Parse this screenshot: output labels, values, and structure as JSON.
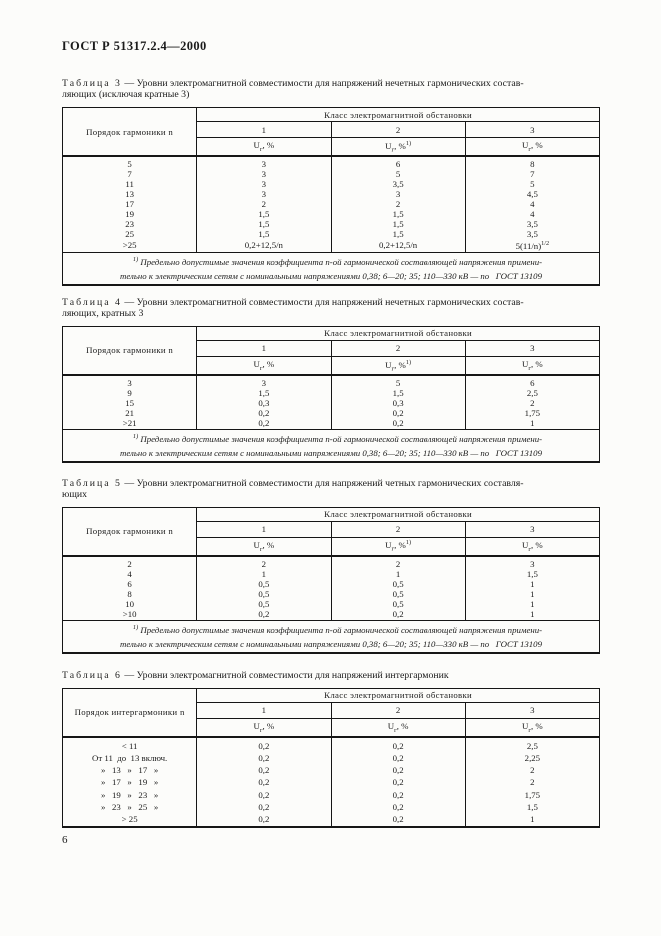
{
  "page": {
    "doc_code": "ГОСТ Р 51317.2.4—2000",
    "page_number": "6"
  },
  "shared": {
    "class_header": "Класс электромагнитной обстановки",
    "class_numbers": [
      "1",
      "2",
      "3"
    ],
    "footnote_marker": "1)",
    "footnote_lines": [
      "Предельно допустимые значения коэффициента n-ой гармонической составляющей напряжения примени-",
      "тельно к электрическим сетям с номинальными напряжениями 0,38; 6—20; 35; 110—330 кВ — по   ГОСТ 13109"
    ]
  },
  "tables": [
    {
      "label": "Таблица 3",
      "title_lines": [
        "— Уровни электромагнитной совместимости для напряжений нечетных гармонических состав-",
        "ляющих (исключая кратные 3)"
      ],
      "row_header": "Порядок гармоники n",
      "units": [
        {
          "t": "Uг, %"
        },
        {
          "t": "Uг, %",
          "sup": "1)"
        },
        {
          "t": "Uг, %"
        }
      ],
      "rows": [
        [
          "5",
          "3",
          "6",
          "8"
        ],
        [
          "7",
          "3",
          "5",
          "7"
        ],
        [
          "11",
          "3",
          "3,5",
          "5"
        ],
        [
          "13",
          "3",
          "3",
          "4,5"
        ],
        [
          "17",
          "2",
          "2",
          "4"
        ],
        [
          "19",
          "1,5",
          "1,5",
          "4"
        ],
        [
          "23",
          "1,5",
          "1,5",
          "3,5"
        ],
        [
          "25",
          "1,5",
          "1,5",
          "3,5"
        ],
        [
          ">25",
          "0,2+12,5/n",
          "0,2+12,5/n",
          "5(11/n)^1/2"
        ]
      ],
      "footnote": true
    },
    {
      "label": "Таблица 4",
      "title_lines": [
        "— Уровни электромагнитной совместимости для напряжений нечетных гармонических состав-",
        "ляющих, кратных 3"
      ],
      "row_header": "Порядок гармоники n",
      "units": [
        {
          "t": "Uг, %"
        },
        {
          "t": "Uг, %",
          "sup": "1)"
        },
        {
          "t": "Uг, %"
        }
      ],
      "rows": [
        [
          "3",
          "3",
          "5",
          "6"
        ],
        [
          "9",
          "1,5",
          "1,5",
          "2,5"
        ],
        [
          "15",
          "0,3",
          "0,3",
          "2"
        ],
        [
          "21",
          "0,2",
          "0,2",
          "1,75"
        ],
        [
          ">21",
          "0,2",
          "0,2",
          "1"
        ]
      ],
      "footnote": true
    },
    {
      "label": "Таблица 5",
      "title_lines": [
        "— Уровни электромагнитной совместимости для напряжений четных гармонических составля-",
        "ющих"
      ],
      "row_header": "Порядок гармоники n",
      "units": [
        {
          "t": "Uг, %"
        },
        {
          "t": "Uг, %",
          "sup": "1)"
        },
        {
          "t": "Uг, %"
        }
      ],
      "rows": [
        [
          "2",
          "2",
          "2",
          "3"
        ],
        [
          "4",
          "1",
          "1",
          "1,5"
        ],
        [
          "6",
          "0,5",
          "0,5",
          "1"
        ],
        [
          "8",
          "0,5",
          "0,5",
          "1"
        ],
        [
          "10",
          "0,5",
          "0,5",
          "1"
        ],
        [
          ">10",
          "0,2",
          "0,2",
          "1"
        ]
      ],
      "footnote": true
    },
    {
      "label": "Таблица 6",
      "title_lines": [
        "— Уровни электромагнитной совместимости для напряжений интергармоник"
      ],
      "row_header": "Порядок интергармоники n",
      "units": [
        {
          "t": "Uг, %"
        },
        {
          "t": "Uг, %"
        },
        {
          "t": "Uг, %"
        }
      ],
      "rows": [
        [
          "< 11",
          "0,2",
          "0,2",
          "2,5"
        ],
        [
          "От 11  до  13 включ.",
          "0,2",
          "0,2",
          "2,25"
        ],
        [
          "»   13   »   17   »",
          "0,2",
          "0,2",
          "2"
        ],
        [
          "»   17   »   19   »",
          "0,2",
          "0,2",
          "2"
        ],
        [
          "»   19   »   23   »",
          "0,2",
          "0,2",
          "1,75"
        ],
        [
          "»   23   »   25   »",
          "0,2",
          "0,2",
          "1,5"
        ],
        [
          "> 25",
          "0,2",
          "0,2",
          "1"
        ]
      ],
      "footnote": false
    }
  ]
}
